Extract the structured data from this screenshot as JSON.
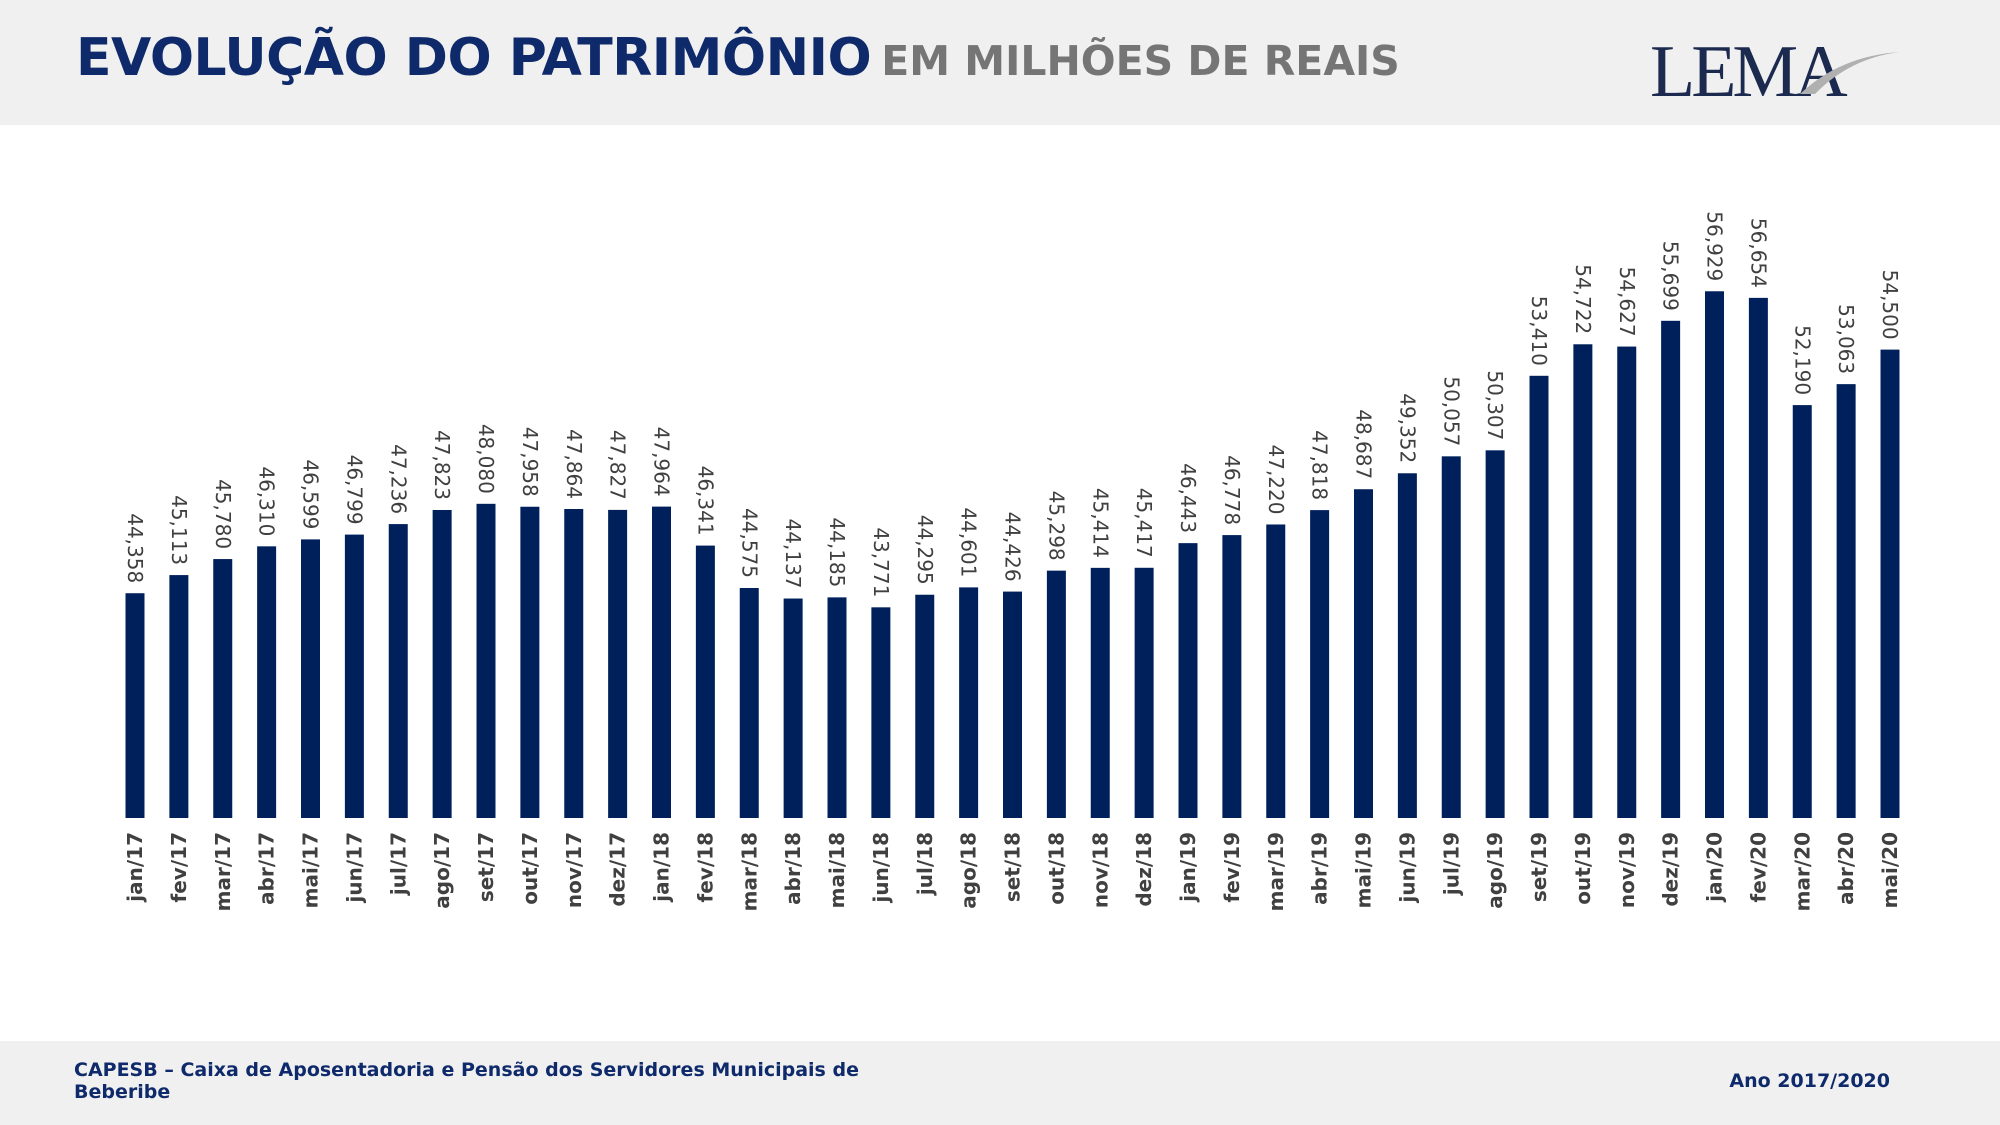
{
  "header": {
    "title": "EVOLUÇÃO DO PATRIMÔNIO",
    "subtitle": "EM MILHÕES DE REAIS",
    "logo_text": "LEMA"
  },
  "footer": {
    "organization": "CAPESB – Caixa de Aposentadoria e Pensão dos Servidores Municipais de Beberibe",
    "period": "Ano 2017/2020"
  },
  "colors": {
    "bar": "#00205b",
    "label": "#404040",
    "title": "#0f2a6b"
  },
  "chart_data": {
    "type": "bar",
    "title": "EVOLUÇÃO DO PATRIMÔNIO EM MILHÕES DE REAIS",
    "xlabel": "",
    "ylabel": "",
    "ylim": [
      35000,
      59000
    ],
    "grid": false,
    "categories": [
      "jan/17",
      "fev/17",
      "mar/17",
      "abr/17",
      "mai/17",
      "jun/17",
      "jul/17",
      "ago/17",
      "set/17",
      "out/17",
      "nov/17",
      "dez/17",
      "jan/18",
      "fev/18",
      "mar/18",
      "abr/18",
      "mai/18",
      "jun/18",
      "jul/18",
      "ago/18",
      "set/18",
      "out/18",
      "nov/18",
      "dez/18",
      "jan/19",
      "fev/19",
      "mar/19",
      "abr/19",
      "mai/19",
      "jun/19",
      "jul/19",
      "ago/19",
      "set/19",
      "out/19",
      "nov/19",
      "dez/19",
      "jan/20",
      "fev/20",
      "mar/20",
      "abr/20",
      "mai/20"
    ],
    "values": [
      44358,
      45113,
      45780,
      46310,
      46599,
      46799,
      47236,
      47823,
      48080,
      47958,
      47864,
      47827,
      47964,
      46341,
      44575,
      44137,
      44185,
      43771,
      44295,
      44601,
      44426,
      45298,
      45414,
      45417,
      46443,
      46778,
      47220,
      47818,
      48687,
      49352,
      50057,
      50307,
      53410,
      54722,
      54627,
      55699,
      56929,
      56654,
      52190,
      53063,
      54500
    ],
    "data_labels": [
      "44,358",
      "45,113",
      "45,780",
      "46,310",
      "46,599",
      "46,799",
      "47,236",
      "47,823",
      "48,080",
      "47,958",
      "47,864",
      "47,827",
      "47,964",
      "46,341",
      "44,575",
      "44,137",
      "44,185",
      "43,771",
      "44,295",
      "44,601",
      "44,426",
      "45,298",
      "45,414",
      "45,417",
      "46,443",
      "46,778",
      "47,220",
      "47,818",
      "48,687",
      "49,352",
      "50,057",
      "50,307",
      "53,410",
      "54,722",
      "54,627",
      "55,699",
      "56,929",
      "56,654",
      "52,190",
      "53,063",
      "54,500"
    ]
  }
}
